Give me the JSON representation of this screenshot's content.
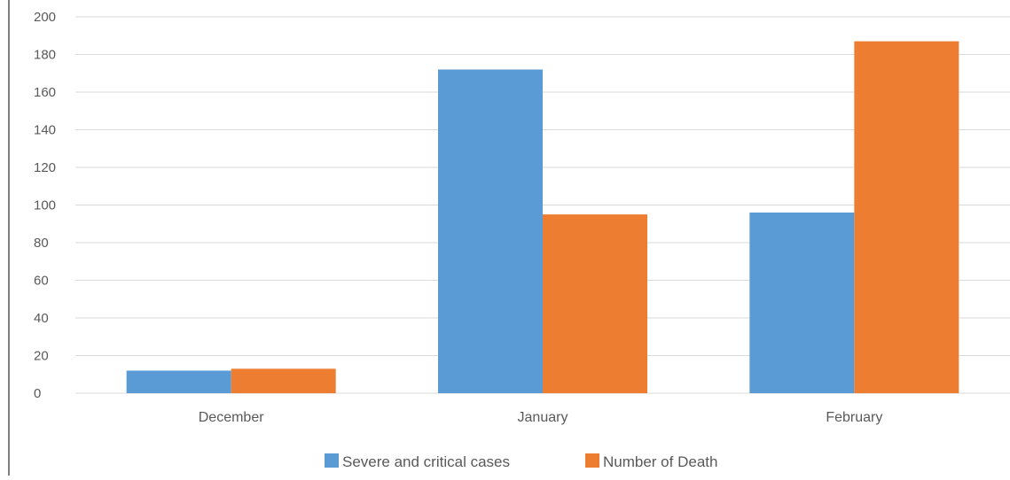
{
  "colors": {
    "series_1": "#5B9BD5",
    "series_2": "#ED7D31",
    "grid": "#D9D9D9",
    "axis_border": "#7F7F7F",
    "text": "#595959"
  },
  "chart_data": {
    "type": "bar",
    "title": "",
    "xlabel": "",
    "ylabel": "",
    "categories": [
      "December",
      "January",
      "February"
    ],
    "series": [
      {
        "name": "Severe and critical  cases",
        "values": [
          12,
          172,
          96
        ]
      },
      {
        "name": "Number of Death",
        "values": [
          13,
          95,
          187
        ]
      }
    ],
    "ylim": [
      0,
      200
    ],
    "yticks": [
      "0",
      "20",
      "40",
      "60",
      "80",
      "100",
      "120",
      "140",
      "160",
      "180",
      "200"
    ],
    "grid": true,
    "legend_position": "bottom"
  }
}
